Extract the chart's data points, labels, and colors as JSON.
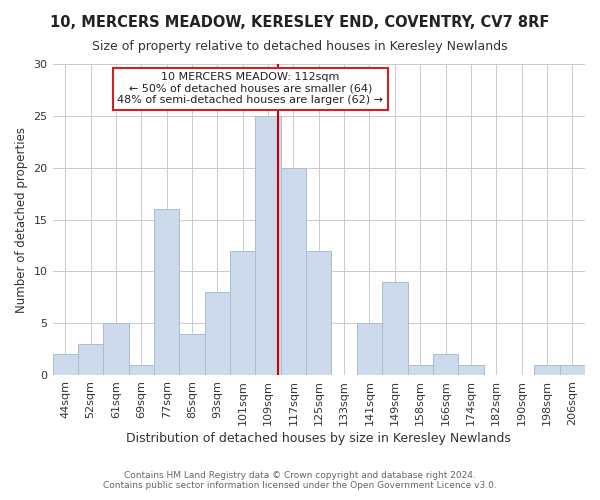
{
  "title": "10, MERCERS MEADOW, KERESLEY END, COVENTRY, CV7 8RF",
  "subtitle": "Size of property relative to detached houses in Keresley Newlands",
  "xlabel": "Distribution of detached houses by size in Keresley Newlands",
  "ylabel": "Number of detached properties",
  "footer_line1": "Contains HM Land Registry data © Crown copyright and database right 2024.",
  "footer_line2": "Contains public sector information licensed under the Open Government Licence v3.0.",
  "bar_labels": [
    "44sqm",
    "52sqm",
    "61sqm",
    "69sqm",
    "77sqm",
    "85sqm",
    "93sqm",
    "101sqm",
    "109sqm",
    "117sqm",
    "125sqm",
    "133sqm",
    "141sqm",
    "149sqm",
    "158sqm",
    "166sqm",
    "174sqm",
    "182sqm",
    "190sqm",
    "198sqm",
    "206sqm"
  ],
  "bar_values": [
    2,
    3,
    5,
    1,
    16,
    4,
    8,
    12,
    25,
    20,
    12,
    0,
    5,
    9,
    1,
    2,
    1,
    0,
    0,
    1,
    1
  ],
  "bar_color": "#ccdaeb",
  "bar_edge_color": "#a8bdd4",
  "marker_color": "#cc0000",
  "annotation_title": "10 MERCERS MEADOW: 112sqm",
  "annotation_line1": "← 50% of detached houses are smaller (64)",
  "annotation_line2": "48% of semi-detached houses are larger (62) →",
  "annotation_box_facecolor": "white",
  "annotation_box_edgecolor": "#cc2222",
  "ylim": [
    0,
    30
  ],
  "yticks": [
    0,
    5,
    10,
    15,
    20,
    25,
    30
  ],
  "background_color": "#ffffff",
  "title_fontsize": 10.5,
  "subtitle_fontsize": 9,
  "xlabel_fontsize": 9,
  "ylabel_fontsize": 8.5,
  "tick_fontsize": 8,
  "footer_fontsize": 6.5,
  "annotation_fontsize": 8
}
